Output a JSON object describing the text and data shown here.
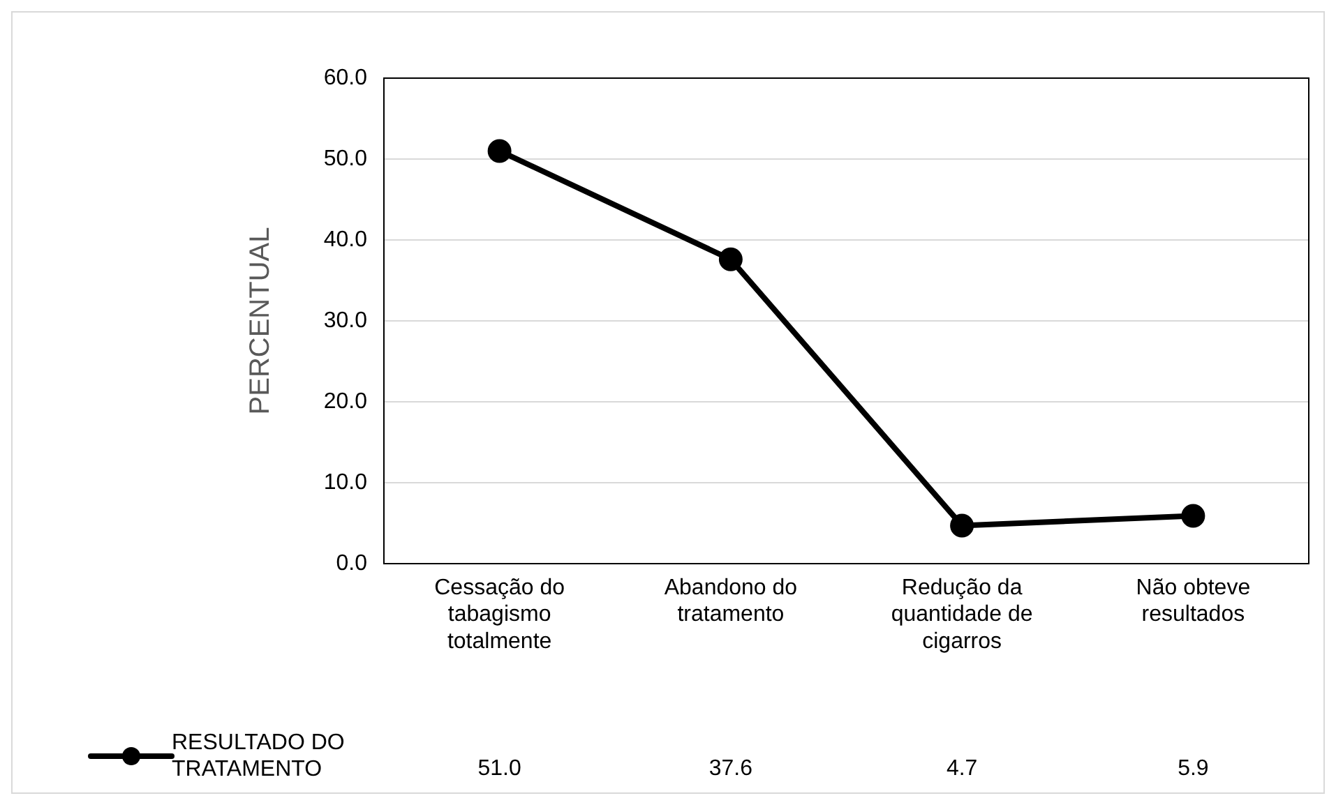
{
  "chart_data": {
    "type": "line",
    "ylabel": "PERCENTUAL",
    "categories": [
      "Cessação do tabagismo totalmente",
      "Abandono do tratamento",
      "Redução da quantidade de cigarros",
      "Não obteve resultados"
    ],
    "series": [
      {
        "name": "RESULTADO DO TRATAMENTO",
        "color": "#000000",
        "values": [
          51.0,
          37.6,
          4.7,
          5.9
        ],
        "value_labels": [
          "51.0",
          "37.6",
          "4.7",
          "5.9"
        ]
      }
    ],
    "ylim": [
      0,
      60
    ],
    "yticks": [
      {
        "value": 0,
        "label": "0.0"
      },
      {
        "value": 10,
        "label": "10.0"
      },
      {
        "value": 20,
        "label": "20.0"
      },
      {
        "value": 30,
        "label": "30.0"
      },
      {
        "value": 40,
        "label": "40.0"
      },
      {
        "value": 50,
        "label": "50.0"
      },
      {
        "value": 60,
        "label": "60.0"
      }
    ],
    "grid": "y",
    "legend": "bottom",
    "marker": "circle",
    "line_style": "solid"
  }
}
